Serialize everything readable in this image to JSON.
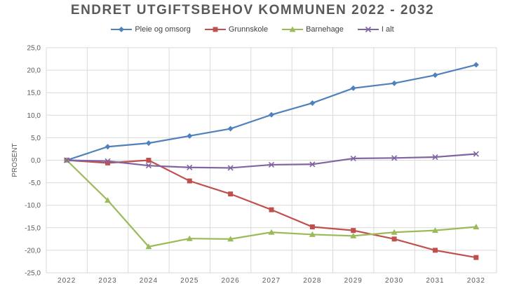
{
  "chart_data": {
    "type": "line",
    "title": "ENDRET UTGIFTSBEHOV KOMMUNEN 2022 - 2032",
    "xlabel": "",
    "ylabel": "PROSENT",
    "categories": [
      "2022",
      "2023",
      "2024",
      "2025",
      "2026",
      "2027",
      "2028",
      "2029",
      "2030",
      "2031",
      "2032"
    ],
    "ylim": [
      -25,
      25
    ],
    "yticks": [
      25,
      20,
      15,
      10,
      5,
      0,
      -5,
      -10,
      -15,
      -20,
      -25
    ],
    "ytick_labels": [
      "25,0",
      "20,0",
      "15,0",
      "10,0",
      "5,0",
      "0,0",
      "-5,0",
      "-10,0",
      "-15,0",
      "-20,0",
      "-25,0"
    ],
    "grid": true,
    "legend_position": "top",
    "series": [
      {
        "name": "Pleie og omsorg",
        "color": "#4F81BD",
        "marker": "diamond",
        "values": [
          0,
          3.0,
          3.8,
          5.4,
          7.0,
          10.1,
          12.7,
          16.0,
          17.1,
          18.9,
          21.2
        ]
      },
      {
        "name": "Grunnskole",
        "color": "#C0504D",
        "marker": "square",
        "values": [
          0,
          -0.6,
          0.0,
          -4.6,
          -7.5,
          -11.0,
          -14.8,
          -15.6,
          -17.5,
          -20.0,
          -21.6
        ]
      },
      {
        "name": "Barnehage",
        "color": "#9BBB59",
        "marker": "triangle",
        "values": [
          0,
          -8.9,
          -19.2,
          -17.4,
          -17.5,
          -16.0,
          -16.5,
          -16.8,
          -16.0,
          -15.6,
          -14.8
        ]
      },
      {
        "name": "I alt",
        "color": "#8064A2",
        "marker": "x",
        "values": [
          0,
          -0.2,
          -1.2,
          -1.6,
          -1.7,
          -1.0,
          -0.9,
          0.4,
          0.5,
          0.7,
          1.4
        ]
      }
    ]
  }
}
